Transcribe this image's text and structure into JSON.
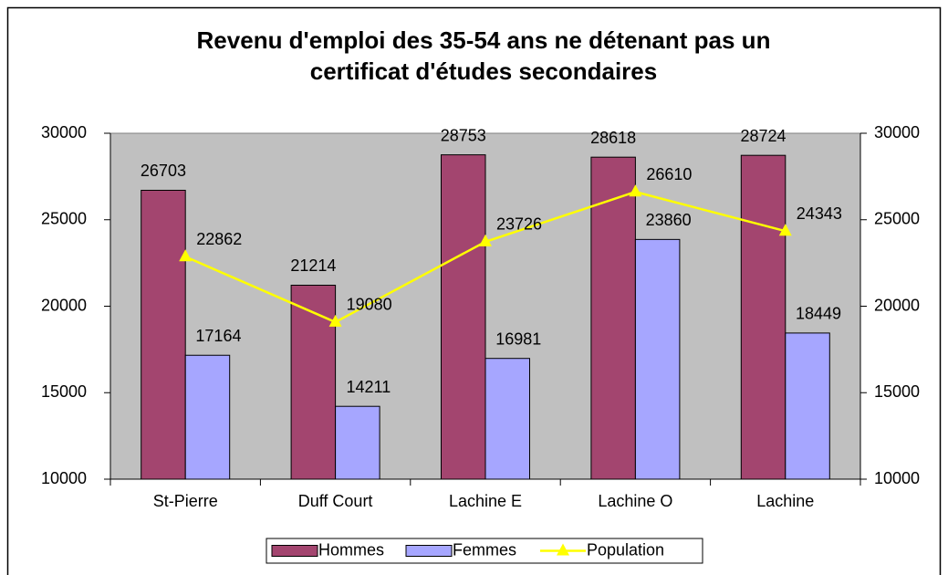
{
  "chart_data": {
    "type": "bar-line",
    "title": "Revenu d'emploi des 35-54 ans ne détenant pas un certificat d'études secondaires",
    "categories": [
      "St-Pierre",
      "Duff Court",
      "Lachine E",
      "Lachine O",
      "Lachine"
    ],
    "series": [
      {
        "name": "Hommes",
        "type": "bar",
        "color": "#a3456f",
        "values": [
          26703,
          21214,
          28753,
          28618,
          28724
        ]
      },
      {
        "name": "Femmes",
        "type": "bar",
        "color": "#a6a6ff",
        "values": [
          17164,
          14211,
          16981,
          23860,
          18449
        ]
      },
      {
        "name": "Population",
        "type": "line",
        "axis": "y2",
        "color": "#ffff00",
        "values": [
          22862,
          19080,
          23726,
          26610,
          24343
        ]
      }
    ],
    "ylim": [
      10000,
      30000
    ],
    "yticks": [
      10000,
      15000,
      20000,
      25000,
      30000
    ],
    "y2lim": [
      10000,
      30000
    ],
    "y2ticks": [
      10000,
      15000,
      20000,
      25000,
      30000
    ],
    "legend": "bottom",
    "grid": false
  }
}
